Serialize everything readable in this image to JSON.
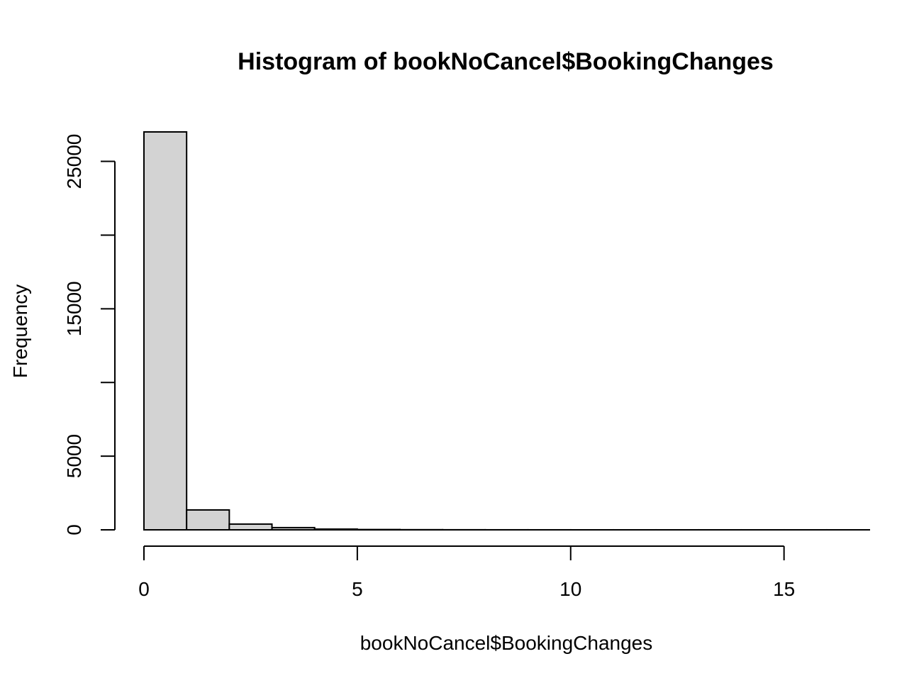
{
  "chart_data": {
    "type": "bar",
    "title": "Histogram of bookNoCancel$BookingChanges",
    "xlabel": "bookNoCancel$BookingChanges",
    "ylabel": "Frequency",
    "bin_edges": [
      0,
      1,
      2,
      3,
      4,
      5,
      6,
      7,
      8,
      9,
      10,
      11,
      12,
      13,
      14,
      15,
      16,
      17
    ],
    "values": [
      27000,
      1350,
      390,
      150,
      50,
      20,
      10,
      5,
      3,
      2,
      1,
      1,
      1,
      1,
      1,
      1,
      1
    ],
    "xlim": [
      0,
      17
    ],
    "ylim": [
      0,
      27000
    ],
    "x_ticks": [
      0,
      5,
      10,
      15
    ],
    "x_tick_labels": [
      "0",
      "5",
      "10",
      "15"
    ],
    "y_ticks": [
      0,
      5000,
      10000,
      15000,
      20000,
      25000
    ],
    "y_tick_labels": [
      "0",
      "5000",
      "",
      "15000",
      "",
      "25000"
    ],
    "bar_fill": "#d3d3d3",
    "grid": false
  }
}
